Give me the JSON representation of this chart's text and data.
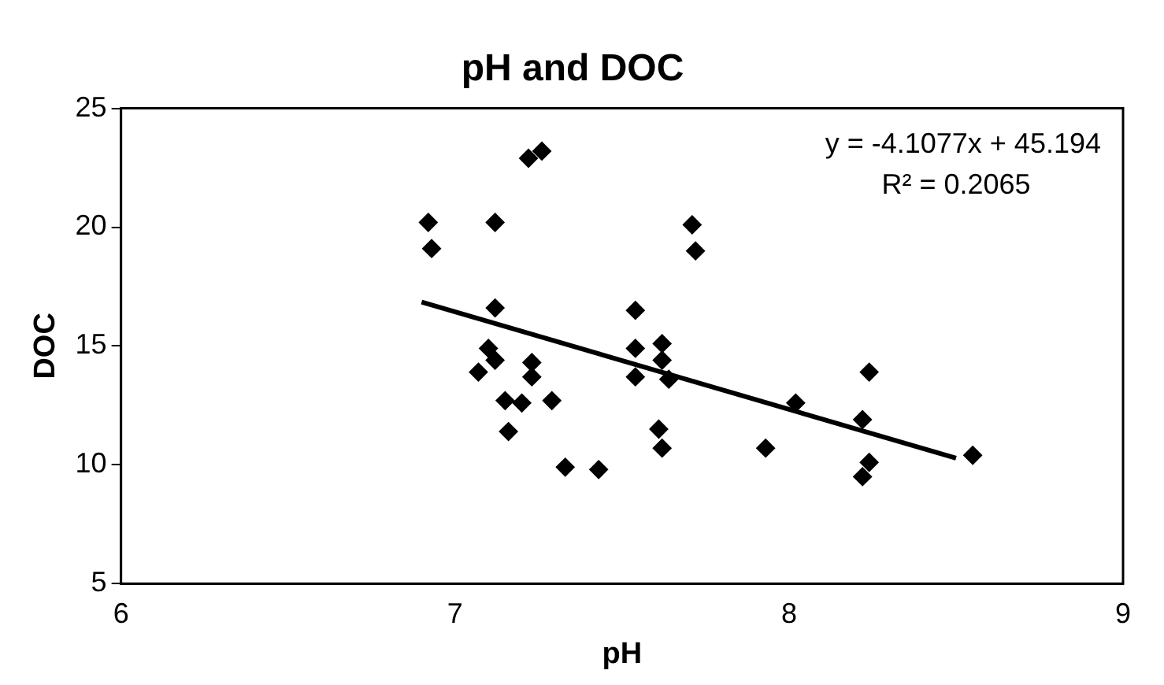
{
  "chart_data": {
    "type": "scatter",
    "title": "pH and DOC",
    "xlabel": "pH",
    "ylabel": "DOC",
    "xlim": [
      6,
      9
    ],
    "xticks": [
      6,
      7,
      8,
      9
    ],
    "ylim": [
      5,
      25
    ],
    "yticks": [
      5,
      10,
      15,
      20,
      25
    ],
    "grid": false,
    "legend": false,
    "annotations": [
      "y = -4.1077x + 45.194",
      "R² = 0.2065"
    ],
    "series": [
      {
        "marker": "diamond",
        "color": "#000000",
        "x": [
          6.92,
          6.93,
          7.12,
          7.22,
          7.26,
          7.12,
          7.1,
          7.12,
          7.07,
          7.23,
          7.23,
          7.15,
          7.2,
          7.29,
          7.16,
          7.33,
          7.43,
          7.54,
          7.54,
          7.54,
          7.71,
          7.72,
          7.62,
          7.62,
          7.64,
          7.61,
          7.62,
          7.93,
          8.02,
          8.24,
          8.22,
          8.24,
          8.22,
          8.55
        ],
        "values": [
          20.2,
          19.1,
          20.2,
          22.9,
          23.2,
          16.6,
          14.9,
          14.4,
          13.9,
          14.3,
          13.7,
          12.7,
          12.6,
          12.7,
          11.4,
          9.9,
          9.8,
          16.5,
          14.9,
          13.7,
          20.1,
          19,
          15.1,
          14.4,
          13.6,
          11.5,
          10.7,
          10.7,
          12.6,
          13.9,
          11.9,
          10.1,
          9.5,
          10.4
        ]
      },
      {
        "type": "line",
        "marker": "none",
        "color": "#000000",
        "x": [
          6.9,
          8.5
        ],
        "values": [
          16.85,
          10.28
        ]
      }
    ]
  }
}
